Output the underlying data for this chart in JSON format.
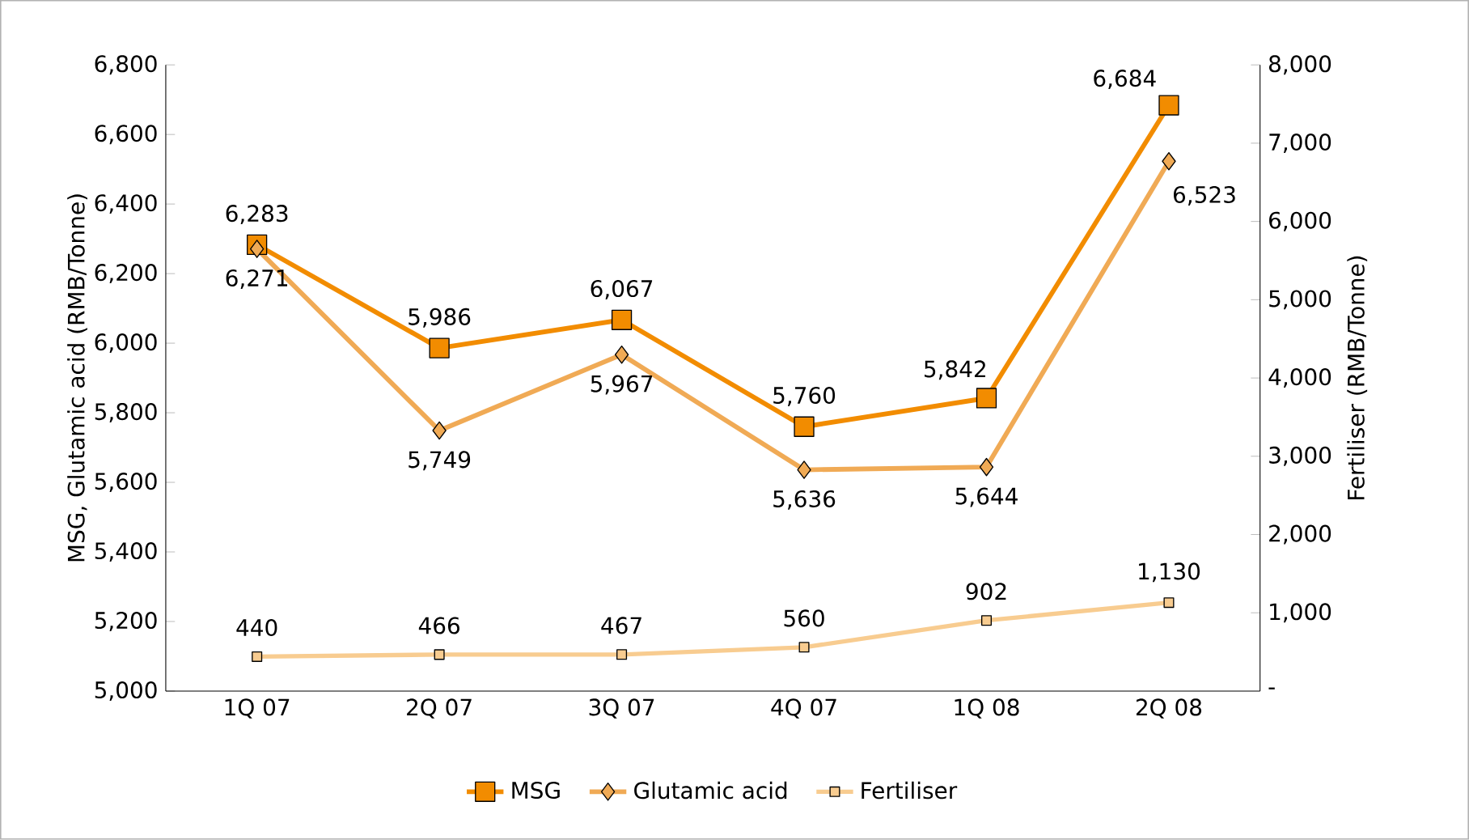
{
  "chart_data": {
    "type": "line",
    "ylabel": "MSG, Glutamic acid  (RMB/Tonne)",
    "y2label": "Fertiliser (RMB/Tonne)",
    "categories": [
      "1Q 07",
      "2Q 07",
      "3Q 07",
      "4Q 07",
      "1Q 08",
      "2Q 08"
    ],
    "series": [
      {
        "name": "MSG",
        "color": "#f28c00",
        "marker": "square",
        "values": [
          6283,
          5986,
          6067,
          5760,
          5842,
          6684
        ],
        "value_labels": [
          "6,283",
          "5,986",
          "6,067",
          "5,760",
          "5,842",
          "6,684"
        ]
      },
      {
        "name": "Glutamic acid",
        "color": "#f0aa55",
        "marker": "diamond",
        "values": [
          6271,
          5749,
          5967,
          5636,
          5644,
          6523
        ],
        "value_labels": [
          "6,271",
          "5,749",
          "5,967",
          "5,636",
          "5,644",
          "6,523"
        ]
      },
      {
        "name": "Fertiliser",
        "color": "#f8cc90",
        "marker": "square",
        "axis": "y2",
        "values": [
          440,
          466,
          467,
          560,
          902,
          1130
        ],
        "value_labels": [
          "440",
          "466",
          "467",
          "560",
          "902",
          "1,130"
        ]
      }
    ],
    "ylim": [
      5000,
      6800
    ],
    "yticks": [
      {
        "value": 5000,
        "label": "5,000"
      },
      {
        "value": 5200,
        "label": "5,200"
      },
      {
        "value": 5400,
        "label": "5,400"
      },
      {
        "value": 5600,
        "label": "5,600"
      },
      {
        "value": 5800,
        "label": "5,800"
      },
      {
        "value": 6000,
        "label": "6,000"
      },
      {
        "value": 6200,
        "label": "6,200"
      },
      {
        "value": 6400,
        "label": "6,400"
      },
      {
        "value": 6600,
        "label": "6,600"
      },
      {
        "value": 6800,
        "label": "6,800"
      }
    ],
    "y2lim": [
      0,
      8000
    ],
    "y2ticks": [
      {
        "value": 0,
        "label": "-"
      },
      {
        "value": 1000,
        "label": "1,000"
      },
      {
        "value": 2000,
        "label": "2,000"
      },
      {
        "value": 3000,
        "label": "3,000"
      },
      {
        "value": 4000,
        "label": "4,000"
      },
      {
        "value": 5000,
        "label": "5,000"
      },
      {
        "value": 6000,
        "label": "6,000"
      },
      {
        "value": 7000,
        "label": "7,000"
      },
      {
        "value": 8000,
        "label": "8,000"
      }
    ],
    "grid": false,
    "legend": "bottom",
    "line_style": "solid"
  }
}
